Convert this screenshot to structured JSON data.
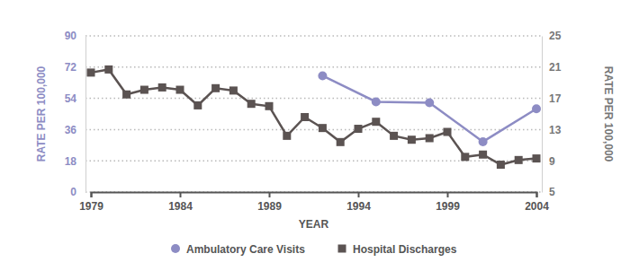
{
  "chart_data": {
    "type": "line",
    "x_label": "YEAR",
    "y_label": "RATE PER 100,000",
    "y2_label": "RATE PER 100,000",
    "xlim": [
      1979,
      2004
    ],
    "xticks": [
      1979,
      1984,
      1989,
      1994,
      1999,
      2004
    ],
    "ylim": [
      0,
      90
    ],
    "yticks": [
      0,
      18,
      36,
      54,
      72,
      90
    ],
    "y2lim": [
      5,
      25
    ],
    "y2ticks": [
      5,
      9,
      13,
      17,
      21,
      25
    ],
    "grid": true,
    "legend": "bottom",
    "series": [
      {
        "name": "Ambulatory Care Visits",
        "color": "#8d8cc4",
        "marker": "circle",
        "axis": "y",
        "x": [
          1992,
          1995,
          1998,
          2001,
          2004
        ],
        "values": [
          67,
          52,
          51.5,
          29,
          48
        ]
      },
      {
        "name": "Hospital Discharges",
        "color": "#5b5352",
        "marker": "square",
        "axis": "y2",
        "x": [
          1979,
          1980,
          1981,
          1982,
          1983,
          1984,
          1985,
          1986,
          1987,
          1988,
          1989,
          1990,
          1991,
          1992,
          1993,
          1994,
          1995,
          1996,
          1997,
          1998,
          1999,
          2000,
          2001,
          2002,
          2003,
          2004
        ],
        "values": [
          20.3,
          20.7,
          17.5,
          18.1,
          18.4,
          18.1,
          16.1,
          18.3,
          18.0,
          16.3,
          16.0,
          12.2,
          14.6,
          13.2,
          11.4,
          13.1,
          14.0,
          12.2,
          11.7,
          11.9,
          12.7,
          9.5,
          9.8,
          8.5,
          9.1,
          9.3
        ]
      }
    ]
  }
}
